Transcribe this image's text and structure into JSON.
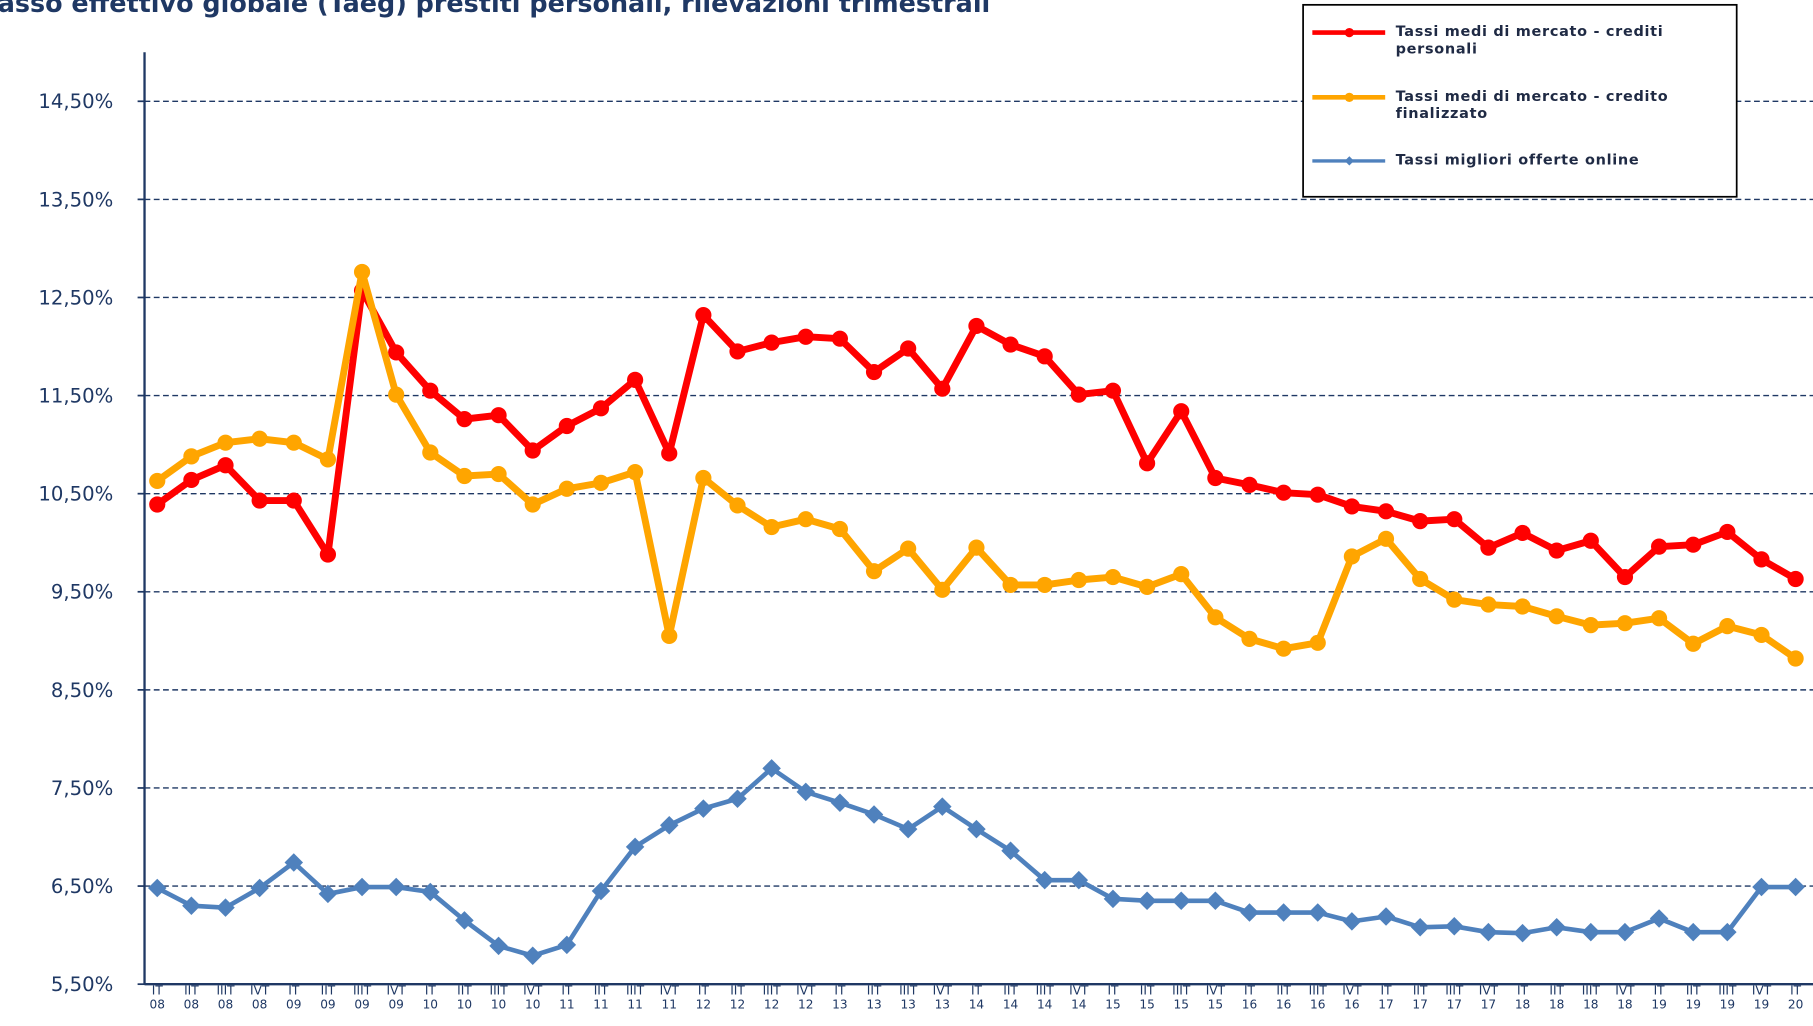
{
  "chart_data": {
    "type": "line",
    "title": "asso effettivo globale (Taeg) prestiti personali, rilevazioni trimestrali",
    "categories": [
      "IT 08",
      "IIT 08",
      "IIIT 08",
      "IVT 08",
      "IT 09",
      "IIT 09",
      "IIIT 09",
      "IVT 09",
      "IT 10",
      "IIT 10",
      "IIIT 10",
      "IVT 10",
      "IT 11",
      "IIT 11",
      "IIIT 11",
      "IVT 11",
      "IT 12",
      "IIT 12",
      "IIIT 12",
      "IVT 12",
      "IT 13",
      "IIT 13",
      "IIIT 13",
      "IVT 13",
      "IT 14",
      "IIT 14",
      "IIIT 14",
      "IVT 14",
      "IT 15",
      "IIT 15",
      "IIIT 15",
      "IVT 15",
      "IT 16",
      "IIT 16",
      "IIIT 16",
      "IVT 16",
      "IT 17",
      "IIT 17",
      "IIIT 17",
      "IVT 17",
      "IT 18",
      "IIT 18",
      "IIIT 18",
      "IVT 18",
      "IT 19",
      "IIT 19",
      "IIIT 19",
      "IVT 19",
      "IT 20"
    ],
    "series": [
      {
        "name": "Tassi medi di mercato - crediti personali",
        "color": "#ff0000",
        "marker": "circle",
        "values": [
          10.39,
          10.64,
          10.79,
          10.43,
          10.43,
          9.88,
          12.57,
          11.94,
          11.55,
          11.26,
          11.3,
          10.94,
          11.19,
          11.37,
          11.66,
          10.91,
          12.32,
          11.95,
          12.04,
          12.1,
          12.08,
          11.74,
          11.98,
          11.57,
          12.21,
          12.02,
          11.9,
          11.51,
          11.55,
          10.81,
          11.34,
          10.66,
          10.59,
          10.51,
          10.49,
          10.37,
          10.32,
          10.22,
          10.24,
          9.95,
          10.1,
          9.92,
          10.02,
          9.65,
          9.96,
          9.98,
          10.11,
          9.83,
          9.63
        ]
      },
      {
        "name": "Tassi medi di mercato - credito finalizzato",
        "color": "#ffa500",
        "marker": "circle",
        "values": [
          10.63,
          10.88,
          11.02,
          11.06,
          11.02,
          10.85,
          12.76,
          11.51,
          10.92,
          10.68,
          10.7,
          10.39,
          10.55,
          10.61,
          10.72,
          9.05,
          10.66,
          10.38,
          10.16,
          10.24,
          10.14,
          9.71,
          9.94,
          9.52,
          9.95,
          9.57,
          9.57,
          9.62,
          9.65,
          9.55,
          9.68,
          9.24,
          9.02,
          8.92,
          8.98,
          9.86,
          10.04,
          9.63,
          9.42,
          9.37,
          9.35,
          9.25,
          9.16,
          9.18,
          9.23,
          8.97,
          9.15,
          9.06,
          8.82
        ]
      },
      {
        "name": "Tassi migliori offerte online",
        "color": "#4f81bd",
        "marker": "diamond",
        "values": [
          6.48,
          6.3,
          6.28,
          6.48,
          6.74,
          6.42,
          6.49,
          6.49,
          6.44,
          6.15,
          5.89,
          5.79,
          5.9,
          6.45,
          6.9,
          7.12,
          7.29,
          7.39,
          7.7,
          7.46,
          7.35,
          7.23,
          7.08,
          7.31,
          7.08,
          6.86,
          6.56,
          6.56,
          6.37,
          6.35,
          6.35,
          6.35,
          6.23,
          6.23,
          6.23,
          6.14,
          6.19,
          6.08,
          6.09,
          6.03,
          6.02,
          6.08,
          6.03,
          6.03,
          6.17,
          6.03,
          6.03,
          6.49,
          6.49
        ]
      }
    ],
    "ylim": [
      5.5,
      15.0
    ],
    "yticks": [
      {
        "value": 5.5,
        "label": "5,50%"
      },
      {
        "value": 6.5,
        "label": "6,50%"
      },
      {
        "value": 7.5,
        "label": "7,50%"
      },
      {
        "value": 8.5,
        "label": "8,50%"
      },
      {
        "value": 9.5,
        "label": "9,50%"
      },
      {
        "value": 10.5,
        "label": "10,50%"
      },
      {
        "value": 11.5,
        "label": "11,50%"
      },
      {
        "value": 12.5,
        "label": "12,50%"
      },
      {
        "value": 13.5,
        "label": "13,50%"
      },
      {
        "value": 14.5,
        "label": "14,50%"
      }
    ],
    "grid": true,
    "legend": "upper right"
  }
}
